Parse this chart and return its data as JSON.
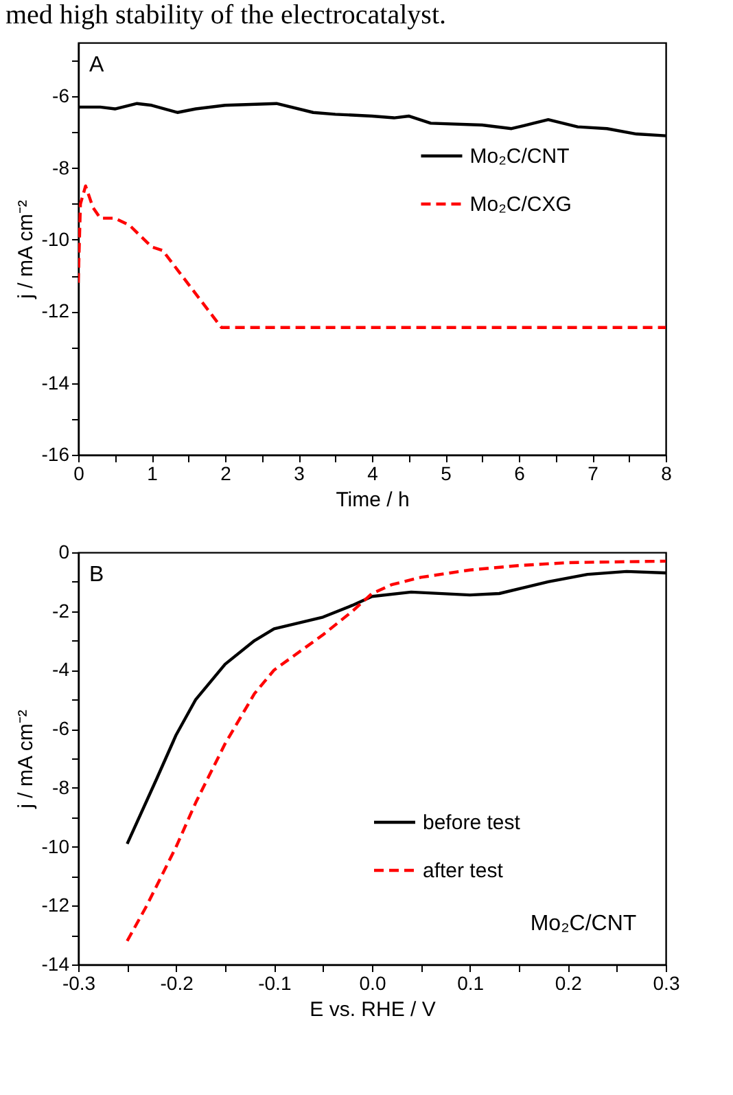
{
  "chart_data": [
    {
      "type": "line",
      "xlabel": "Time / h",
      "ylabel": "j / mA cm⁻²",
      "xlim": [
        0,
        8
      ],
      "ylim": [
        -16,
        -4.5
      ],
      "xticks": [
        0,
        {
          "value": 0.5,
          "label": null
        },
        1,
        {
          "value": 1.5,
          "label": null
        },
        2,
        {
          "value": 2.5,
          "label": null
        },
        3,
        {
          "value": 3.5,
          "label": null
        },
        4,
        {
          "value": 4.5,
          "label": null
        },
        5,
        {
          "value": 5.5,
          "label": null
        },
        6,
        {
          "value": 6.5,
          "label": null
        },
        7,
        {
          "value": 7.5,
          "label": null
        },
        8
      ],
      "yticks": [
        -16,
        {
          "value": -15,
          "label": null
        },
        -14,
        {
          "value": -13,
          "label": null
        },
        -12,
        {
          "value": -11,
          "label": null
        },
        -10,
        {
          "value": -9,
          "label": null
        },
        -8,
        {
          "value": -7,
          "label": null
        },
        -6,
        {
          "value": -5,
          "label": null
        }
      ],
      "grid": false,
      "legend": "right",
      "annotations": [
        "med high stability of the electrocatalyst.",
        "A"
      ],
      "series": [
        {
          "name": "Mo₂C/CNT",
          "color": "#000000",
          "line_style": "solid",
          "x": [
            0,
            0.3,
            0.5,
            0.8,
            1.0,
            1.35,
            1.6,
            2.0,
            2.7,
            3.2,
            3.5,
            4.0,
            4.3,
            4.5,
            4.8,
            5.5,
            5.9,
            6.2,
            6.4,
            6.8,
            7.2,
            7.6,
            8.0
          ],
          "values": [
            -6.3,
            -6.3,
            -6.35,
            -6.2,
            -6.25,
            -6.45,
            -6.35,
            -6.25,
            -6.2,
            -6.45,
            -6.5,
            -6.55,
            -6.6,
            -6.55,
            -6.75,
            -6.8,
            -6.9,
            -6.75,
            -6.65,
            -6.85,
            -6.9,
            -7.05,
            -7.1
          ]
        },
        {
          "name": "Mo₂C/CXG",
          "color": "#ff0000",
          "line_style": "dashed",
          "x": [
            0,
            0.03,
            0.1,
            0.2,
            0.3,
            0.5,
            0.7,
            1.0,
            1.15,
            1.95,
            3,
            4,
            5,
            6,
            7,
            8
          ],
          "values": [
            -11.2,
            -9,
            -8.5,
            -9.1,
            -9.4,
            -9.4,
            -9.6,
            -10.2,
            -10.3,
            -12.45,
            -12.45,
            -12.45,
            -12.45,
            -12.45,
            -12.45,
            -12.45
          ]
        }
      ]
    },
    {
      "type": "line",
      "xlabel": "E vs. RHE / V",
      "ylabel": "j / mA cm⁻²",
      "xlim": [
        -0.3,
        0.3
      ],
      "ylim": [
        -14,
        0
      ],
      "xticks": [
        -0.3,
        {
          "value": -0.25,
          "label": null
        },
        -0.2,
        {
          "value": -0.15,
          "label": null
        },
        -0.1,
        {
          "value": -0.05,
          "label": null
        },
        {
          "value": 0,
          "label": "0.0"
        },
        {
          "value": 0.05,
          "label": null
        },
        0.1,
        {
          "value": 0.15,
          "label": null
        },
        0.2,
        {
          "value": 0.25,
          "label": null
        },
        0.3
      ],
      "yticks": [
        -14,
        {
          "value": -13,
          "label": null
        },
        -12,
        {
          "value": -11,
          "label": null
        },
        -10,
        {
          "value": -9,
          "label": null
        },
        -8,
        {
          "value": -7,
          "label": null
        },
        -6,
        {
          "value": -5,
          "label": null
        },
        -4,
        {
          "value": -3,
          "label": null
        },
        -2,
        {
          "value": -1,
          "label": null
        },
        0
      ],
      "grid": false,
      "legend": "bottom right",
      "annotations": [
        "B",
        "Mo₂C/CNT"
      ],
      "series": [
        {
          "name": "before test",
          "color": "#000000",
          "line_style": "solid",
          "x": [
            -0.25,
            -0.22,
            -0.2,
            -0.18,
            -0.15,
            -0.12,
            -0.1,
            -0.05,
            -0.02,
            0.0,
            0.04,
            0.1,
            0.13,
            0.18,
            0.22,
            0.26,
            0.3
          ],
          "values": [
            -9.9,
            -7.7,
            -6.2,
            -5,
            -3.8,
            -3.0,
            -2.6,
            -2.2,
            -1.8,
            -1.5,
            -1.35,
            -1.45,
            -1.4,
            -1.0,
            -0.75,
            -0.65,
            -0.7
          ]
        },
        {
          "name": "after test",
          "color": "#ff0000",
          "line_style": "dashed",
          "x": [
            -0.25,
            -0.23,
            -0.2,
            -0.18,
            -0.15,
            -0.12,
            -0.1,
            -0.05,
            -0.02,
            0.0,
            0.02,
            0.05,
            0.1,
            0.15,
            0.2,
            0.3
          ],
          "values": [
            -13.2,
            -12.0,
            -10,
            -8.5,
            -6.5,
            -4.8,
            -4.0,
            -2.8,
            -2.0,
            -1.4,
            -1.1,
            -0.85,
            -0.6,
            -0.45,
            -0.35,
            -0.3
          ]
        }
      ]
    }
  ]
}
